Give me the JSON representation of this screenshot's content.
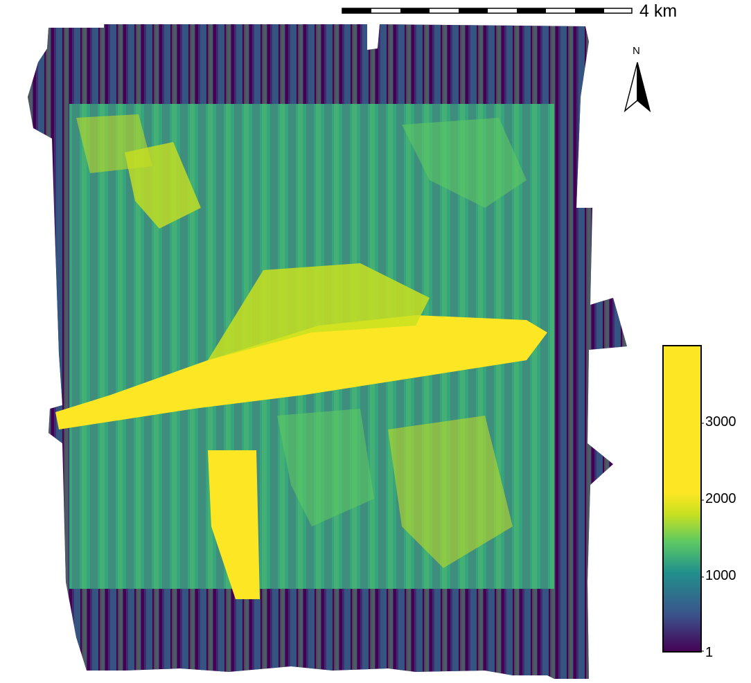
{
  "map": {
    "scalebar": {
      "label": "4 km"
    },
    "north_arrow": {
      "label": "N"
    },
    "colorbar": {
      "colormap": "viridis",
      "stops": [
        "#440154",
        "#3b528b",
        "#21918c",
        "#5ec962",
        "#c8e020",
        "#fde725"
      ],
      "ticks": [
        "3000",
        "2000",
        "1000",
        "1"
      ]
    },
    "palette": {
      "low": "#440154",
      "mid_low": "#3b528b",
      "mid": "#21918c",
      "mid_high": "#5ec962",
      "high": "#fde725"
    }
  }
}
